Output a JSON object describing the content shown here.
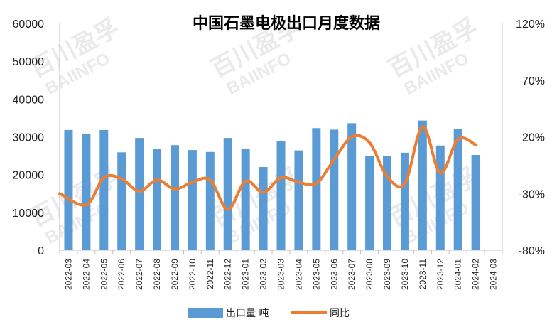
{
  "chart_data": {
    "type": "bar",
    "title": "中国石墨电极出口月度数据",
    "categories": [
      "2022-03",
      "2022-04",
      "2022-05",
      "2022-06",
      "2022-07",
      "2022-08",
      "2022-09",
      "2022-10",
      "2022-11",
      "2022-12",
      "2023-01",
      "2023-02",
      "2023-03",
      "2023-04",
      "2023-05",
      "2023-06",
      "2023-07",
      "2023-08",
      "2023-09",
      "2023-10",
      "2023-11",
      "2023-12",
      "2024-01",
      "2024-02",
      "2024-03"
    ],
    "series": [
      {
        "name": "出口量 吨",
        "type": "bar",
        "axis": "left",
        "color": "#5b9bd5",
        "values": [
          31800,
          30700,
          31800,
          25900,
          29700,
          26700,
          27800,
          26500,
          26000,
          29700,
          26900,
          22000,
          28800,
          26400,
          32300,
          31900,
          33600,
          24900,
          25000,
          25800,
          34300,
          27700,
          32100,
          25200,
          null
        ]
      },
      {
        "name": "同比",
        "type": "line",
        "axis": "right",
        "color": "#ed7d31",
        "values": [
          -30,
          -40,
          -16,
          -17,
          -28,
          -18,
          -26,
          -20,
          -18,
          -44,
          -19,
          -29,
          -16,
          -20,
          -21,
          0,
          20,
          15,
          -15,
          -21,
          29,
          -12,
          18,
          13,
          null
        ]
      }
    ],
    "y_left": {
      "min": 0,
      "max": 60000,
      "ticks": [
        "0",
        "10000",
        "20000",
        "30000",
        "40000",
        "50000",
        "60000"
      ]
    },
    "y_right": {
      "min": -80,
      "max": 120,
      "ticks": [
        "-80%",
        "-30%",
        "20%",
        "70%",
        "120%"
      ],
      "tick_values": [
        -80,
        -30,
        20,
        70,
        120
      ]
    },
    "grid": false,
    "legend": {
      "position": "bottom",
      "entries": [
        "出口量 吨",
        "同比"
      ]
    }
  },
  "watermark": {
    "cn": "百川盈孚",
    "en": "BAIINFO"
  }
}
